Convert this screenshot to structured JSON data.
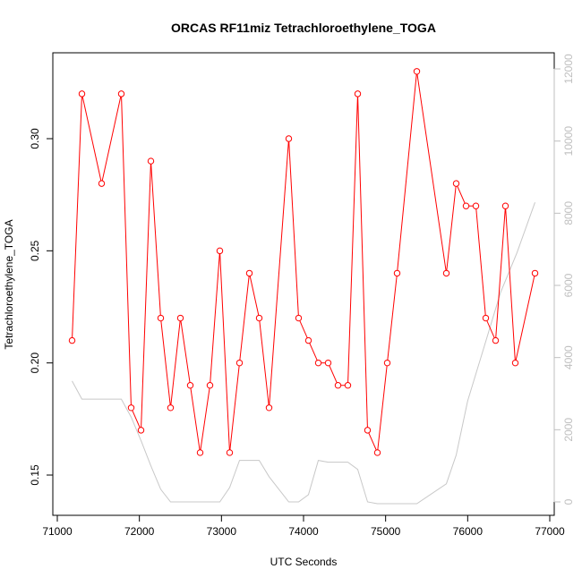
{
  "chart_data": {
    "type": "line",
    "title": "ORCAS RF11miz Tetrachloroethylene_TOGA",
    "xlabel": "UTC Seconds",
    "ylabel": "Tetrachloroethylene_TOGA",
    "xlim": [
      71000,
      77000
    ],
    "ylim": [
      0.14,
      0.33
    ],
    "y2lim": [
      0,
      12000
    ],
    "x_ticks": [
      71000,
      72000,
      73000,
      74000,
      75000,
      76000,
      77000
    ],
    "x_tick_labels": [
      "71000",
      "72000",
      "73000",
      "74000",
      "75000",
      "76000",
      "77000"
    ],
    "y_ticks": [
      0.15,
      0.2,
      0.25,
      0.3
    ],
    "y_tick_labels": [
      "0.15",
      "0.20",
      "0.25",
      "0.30"
    ],
    "y2_ticks": [
      0,
      2000,
      4000,
      6000,
      8000,
      10000,
      12000
    ],
    "y2_tick_labels": [
      "0",
      "2000",
      "4000",
      "6000",
      "8000",
      "10000",
      "12000"
    ],
    "colors": {
      "primary": "#ff0000",
      "secondary": "#c8c8c8",
      "axis": "#000000",
      "axis2": "#bfbfbf"
    },
    "series": [
      {
        "axis": "left",
        "x": [
          71180,
          71300,
          71540,
          71780,
          71900,
          72020,
          72140,
          72260,
          72380,
          72500,
          72620,
          72740,
          72860,
          72980,
          73100,
          73220,
          73340,
          73460,
          73580,
          73820,
          73940,
          74060,
          74180,
          74300,
          74420,
          74540,
          74660,
          74780,
          74900,
          75020,
          75140,
          75380,
          75740,
          75860,
          75980,
          76100,
          76220,
          76340,
          76460,
          76580,
          76820
        ],
        "values": [
          0.21,
          0.32,
          0.28,
          0.32,
          0.18,
          0.17,
          0.29,
          0.22,
          0.18,
          0.22,
          0.19,
          0.16,
          0.19,
          0.25,
          0.16,
          0.2,
          0.24,
          0.22,
          0.18,
          0.3,
          0.22,
          0.21,
          0.2,
          0.2,
          0.19,
          0.19,
          0.32,
          0.17,
          0.16,
          0.2,
          0.24,
          0.33,
          0.24,
          0.28,
          0.27,
          0.27,
          0.22,
          0.21,
          0.27,
          0.2,
          0.24
        ]
      },
      {
        "axis": "right",
        "x": [
          71180,
          71300,
          71780,
          71900,
          72020,
          72140,
          72260,
          72380,
          72500,
          72620,
          72740,
          72860,
          72980,
          73100,
          73220,
          73340,
          73460,
          73580,
          73700,
          73820,
          73940,
          74060,
          74180,
          74300,
          74420,
          74540,
          74660,
          74780,
          74900,
          75020,
          75140,
          75380,
          75740,
          75860,
          76000,
          76200,
          76400,
          76600,
          76820
        ],
        "values": [
          3350,
          2850,
          2850,
          2350,
          1700,
          1000,
          350,
          0,
          0,
          0,
          0,
          0,
          0,
          400,
          1150,
          1150,
          1150,
          700,
          350,
          0,
          0,
          200,
          1150,
          1100,
          1100,
          1100,
          900,
          0,
          -50,
          -50,
          -50,
          -50,
          500,
          1300,
          2800,
          4300,
          5800,
          6900,
          8300
        ]
      }
    ]
  }
}
